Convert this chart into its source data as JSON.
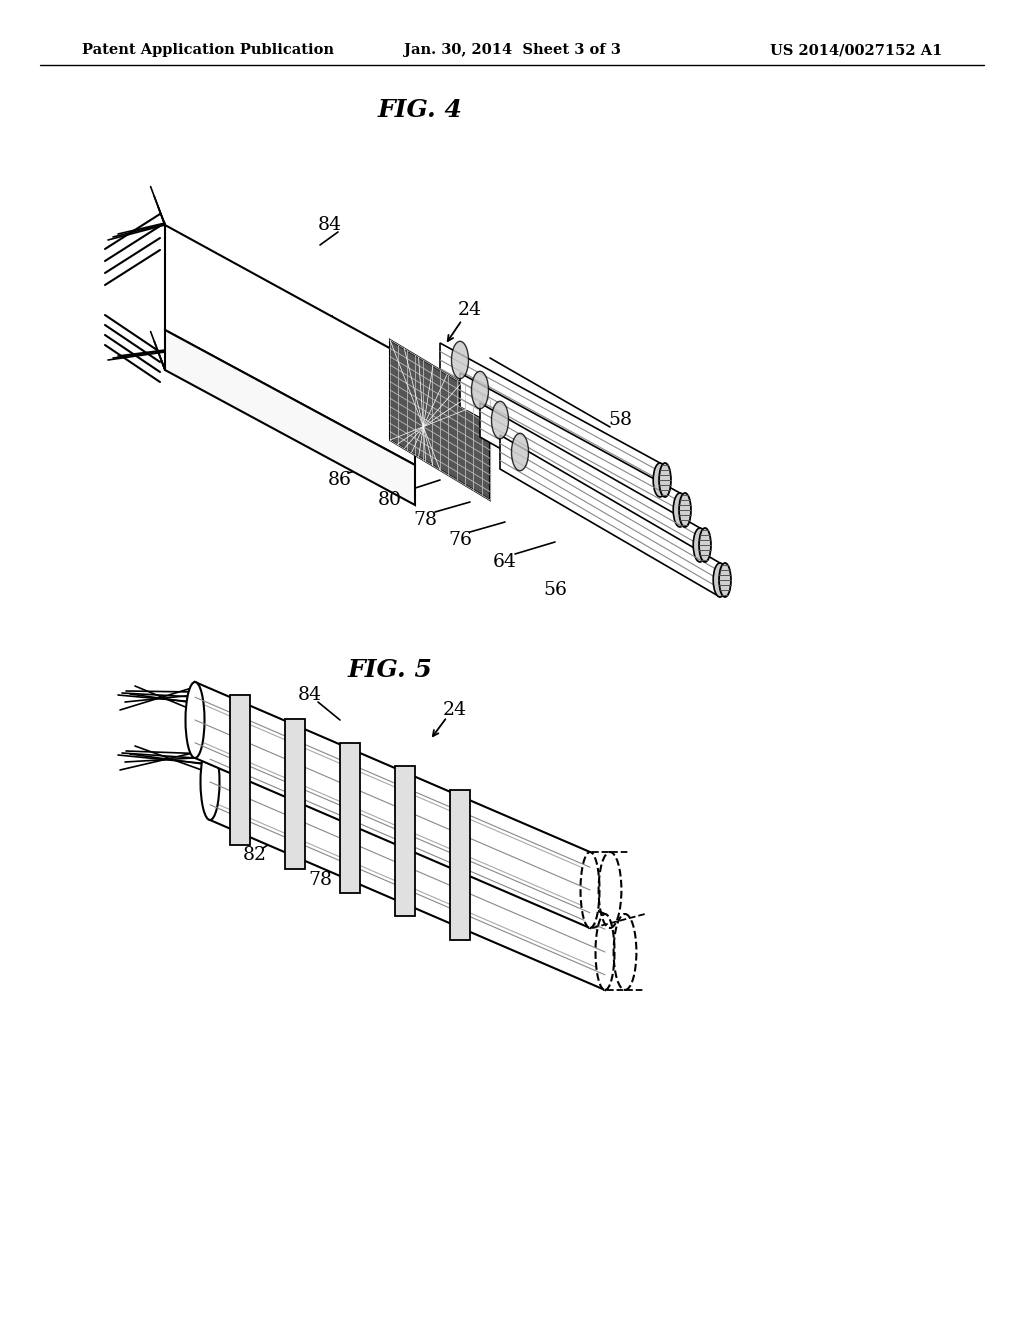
{
  "bg_color": "#ffffff",
  "line_color": "#000000",
  "header_left": "Patent Application Publication",
  "header_center": "Jan. 30, 2014  Sheet 3 of 3",
  "header_right": "US 2014/0027152 A1",
  "fig4_title": "FIG. 4",
  "fig5_title": "FIG. 5",
  "labels_fig4": [
    "84",
    "24",
    "58",
    "86",
    "80",
    "78",
    "76",
    "64",
    "56"
  ],
  "labels_fig5": [
    "84",
    "24",
    "82",
    "78"
  ]
}
